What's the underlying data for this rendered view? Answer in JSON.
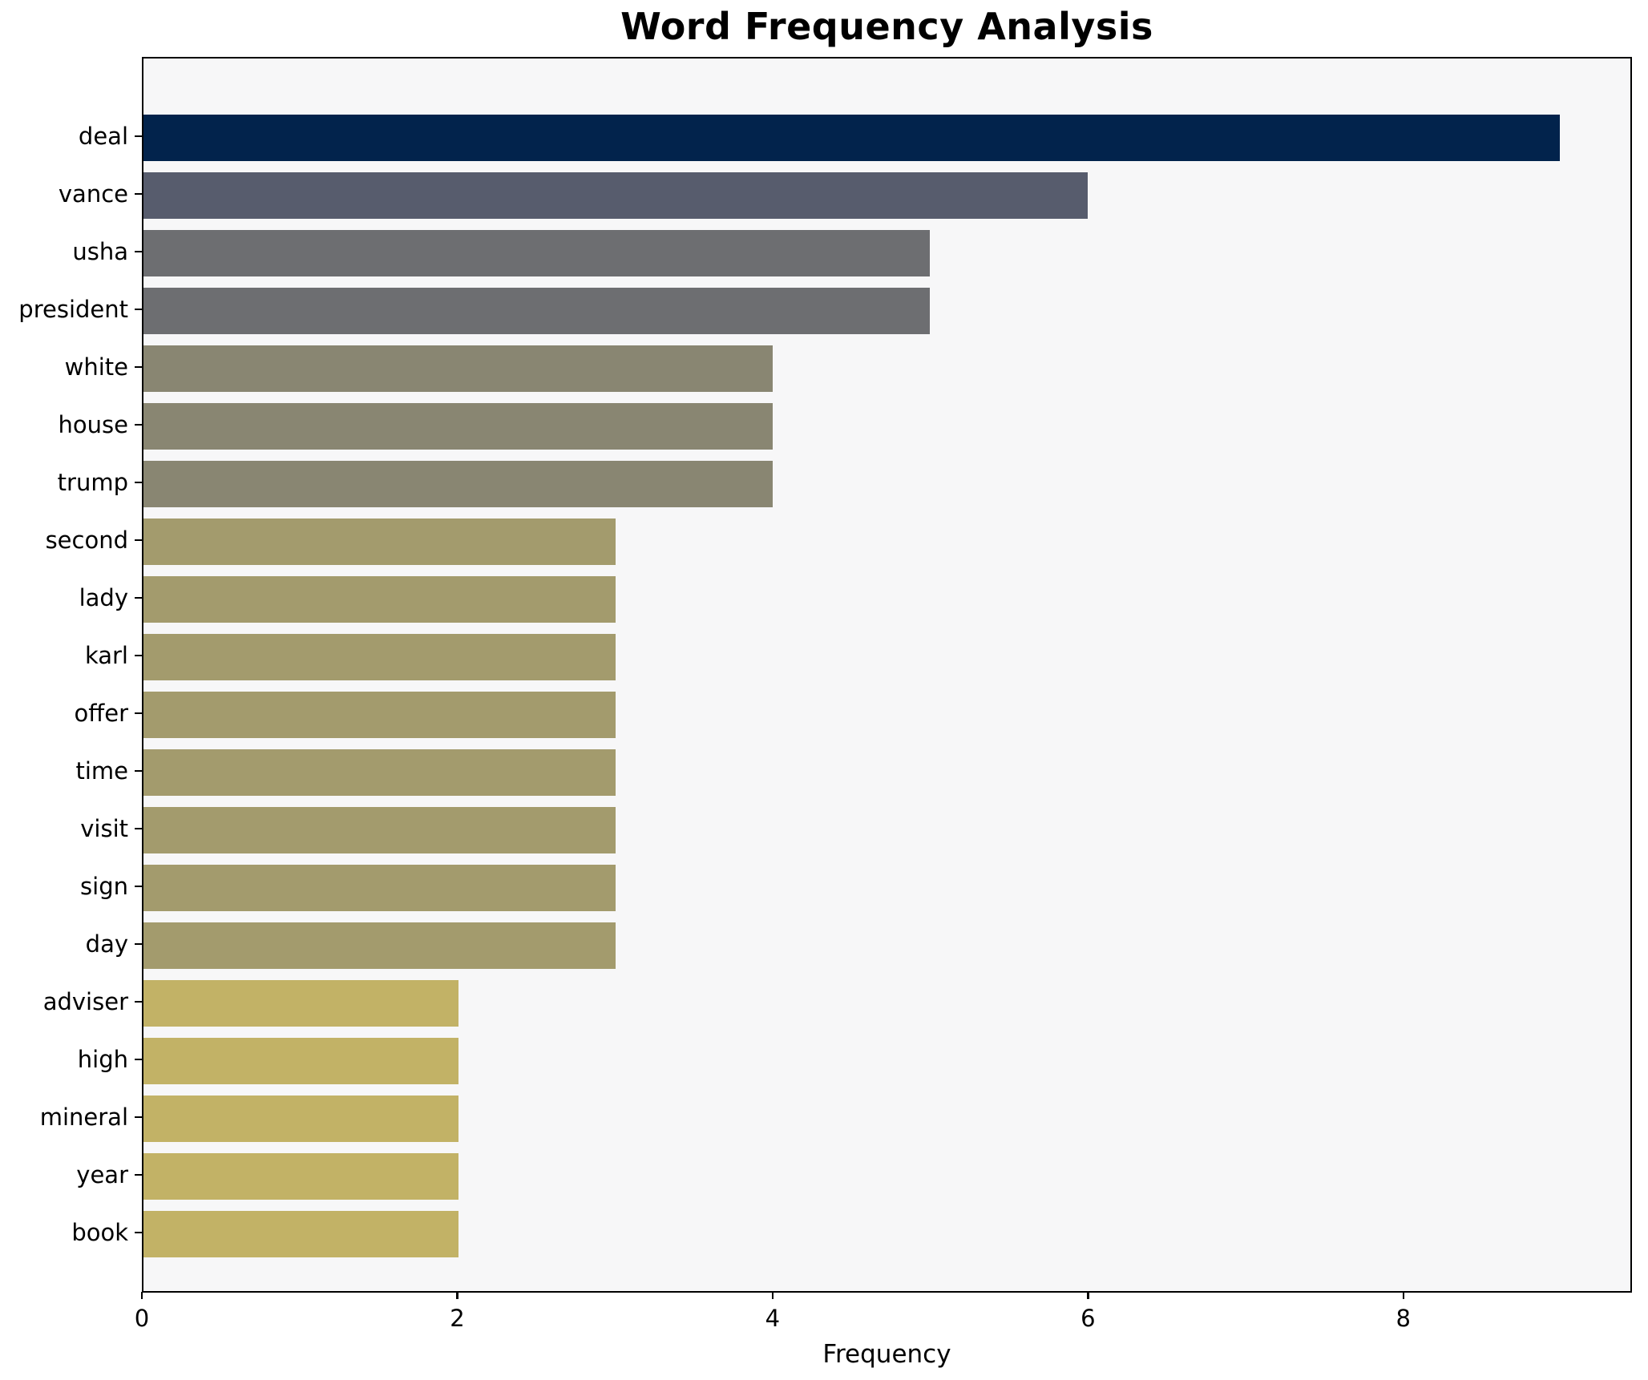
{
  "chart_data": {
    "type": "bar",
    "orientation": "horizontal",
    "title": "Word Frequency Analysis",
    "xlabel": "Frequency",
    "ylabel": "",
    "categories": [
      "deal",
      "vance",
      "usha",
      "president",
      "white",
      "house",
      "trump",
      "second",
      "lady",
      "karl",
      "offer",
      "time",
      "visit",
      "sign",
      "day",
      "adviser",
      "high",
      "mineral",
      "year",
      "book"
    ],
    "values": [
      9,
      6,
      5,
      5,
      4,
      4,
      4,
      3,
      3,
      3,
      3,
      3,
      3,
      3,
      3,
      2,
      2,
      2,
      2,
      2
    ],
    "bar_colors": [
      "#02234c",
      "#575c6d",
      "#6d6e71",
      "#6d6e71",
      "#898672",
      "#898672",
      "#898672",
      "#a39b6d",
      "#a39b6d",
      "#a39b6d",
      "#a39b6d",
      "#a39b6d",
      "#a39b6d",
      "#a39b6d",
      "#a39b6d",
      "#c2b266",
      "#c2b266",
      "#c2b266",
      "#c2b266",
      "#c2b266"
    ],
    "xlim": [
      0,
      9.45
    ],
    "x_ticks": [
      "0",
      "2",
      "4",
      "6",
      "8"
    ],
    "x_tick_values": [
      0,
      2,
      4,
      6,
      8
    ],
    "grid": false,
    "legend_position": "none",
    "plot_background": "#f7f7f8",
    "figure_background": "#ffffff"
  }
}
